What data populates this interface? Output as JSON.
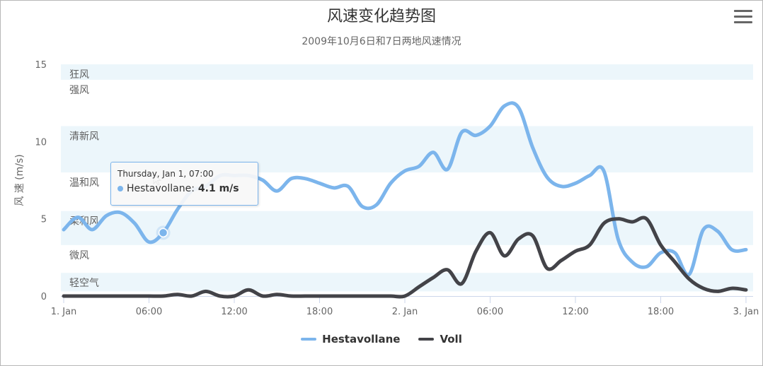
{
  "chart_data": {
    "type": "line",
    "title": "风速变化趋势图",
    "subtitle": "2009年10月6日和7日两地风速情况",
    "ylabel": "风 速 (m/s)",
    "xlabel": "",
    "ylim": [
      0,
      15
    ],
    "yticks": [
      "0",
      "5",
      "10",
      "15"
    ],
    "xlim_hours": [
      -0.2,
      48.5
    ],
    "xticks": [
      {
        "h": 0,
        "label": "1. Jan"
      },
      {
        "h": 6,
        "label": "06:00"
      },
      {
        "h": 12,
        "label": "12:00"
      },
      {
        "h": 18,
        "label": "18:00"
      },
      {
        "h": 24,
        "label": "2. Jan"
      },
      {
        "h": 30,
        "label": "06:00"
      },
      {
        "h": 36,
        "label": "12:00"
      },
      {
        "h": 42,
        "label": "18:00"
      },
      {
        "h": 48,
        "label": "3. Jan"
      }
    ],
    "plot_bands": [
      {
        "from": 0.3,
        "to": 1.5,
        "label": "轻空气",
        "shaded": true
      },
      {
        "from": 1.5,
        "to": 3.3,
        "label": "微风",
        "shaded": false
      },
      {
        "from": 3.3,
        "to": 5.5,
        "label": "柔和风",
        "shaded": true
      },
      {
        "from": 5.5,
        "to": 8,
        "label": "温和风",
        "shaded": false
      },
      {
        "from": 8,
        "to": 11,
        "label": "清新风",
        "shaded": true
      },
      {
        "from": 11,
        "to": 14,
        "label": "强风",
        "shaded": false
      },
      {
        "from": 14,
        "to": 15,
        "label": "狂风",
        "shaded": true
      }
    ],
    "series": [
      {
        "name": "Hestavollane",
        "color": "#7cb5ec",
        "x_hours": [
          0,
          1,
          2,
          3,
          4,
          5,
          6,
          7,
          8,
          9,
          10,
          11,
          12,
          13,
          14,
          15,
          16,
          17,
          18,
          19,
          20,
          21,
          22,
          23,
          24,
          25,
          26,
          27,
          28,
          29,
          30,
          31,
          32,
          33,
          34,
          35,
          36,
          37,
          38,
          39,
          40,
          41,
          42,
          43,
          44,
          45,
          46,
          47,
          48
        ],
        "values": [
          4.3,
          5.1,
          4.3,
          5.2,
          5.4,
          4.7,
          3.5,
          4.1,
          5.6,
          6.8,
          7.1,
          7.8,
          7.8,
          7.8,
          7.5,
          6.8,
          7.6,
          7.6,
          7.3,
          7,
          7.1,
          5.8,
          5.9,
          7.3,
          8.1,
          8.4,
          9.3,
          8.2,
          10.6,
          10.4,
          11,
          12.3,
          12.2,
          9.6,
          7.7,
          7.1,
          7.3,
          7.8,
          8.1,
          3.7,
          2.2,
          1.9,
          2.8,
          2.8,
          1.4,
          4.3,
          4.2,
          3,
          3
        ]
      },
      {
        "name": "Voll",
        "color": "#434348",
        "x_hours": [
          0,
          1,
          2,
          3,
          4,
          5,
          6,
          7,
          8,
          9,
          10,
          11,
          12,
          13,
          14,
          15,
          16,
          17,
          18,
          19,
          20,
          21,
          22,
          23,
          24,
          25,
          26,
          27,
          28,
          29,
          30,
          31,
          32,
          33,
          34,
          35,
          36,
          37,
          38,
          39,
          40,
          41,
          42,
          43,
          44,
          45,
          46,
          47,
          48
        ],
        "values": [
          0,
          0,
          0,
          0,
          0,
          0,
          0,
          0,
          0.1,
          0,
          0.3,
          0,
          0,
          0.4,
          0,
          0.1,
          0,
          0,
          0,
          0,
          0,
          0,
          0,
          0,
          0,
          0.6,
          1.2,
          1.7,
          0.8,
          2.9,
          4.1,
          2.6,
          3.7,
          3.9,
          1.8,
          2.3,
          2.9,
          3.3,
          4.7,
          5,
          4.8,
          5,
          3.3,
          2.2,
          1.1,
          0.5,
          0.3,
          0.5,
          0.4
        ]
      }
    ],
    "highlight": {
      "series": 0,
      "h": 7,
      "value": 4.1
    }
  },
  "tooltip": {
    "header": "Thursday, Jan 1, 07:00",
    "series_name": "Hestavollane",
    "value_text": "4.1 m/s",
    "color": "#7cb5ec"
  },
  "menu": {
    "icon": "hamburger-menu-icon"
  }
}
